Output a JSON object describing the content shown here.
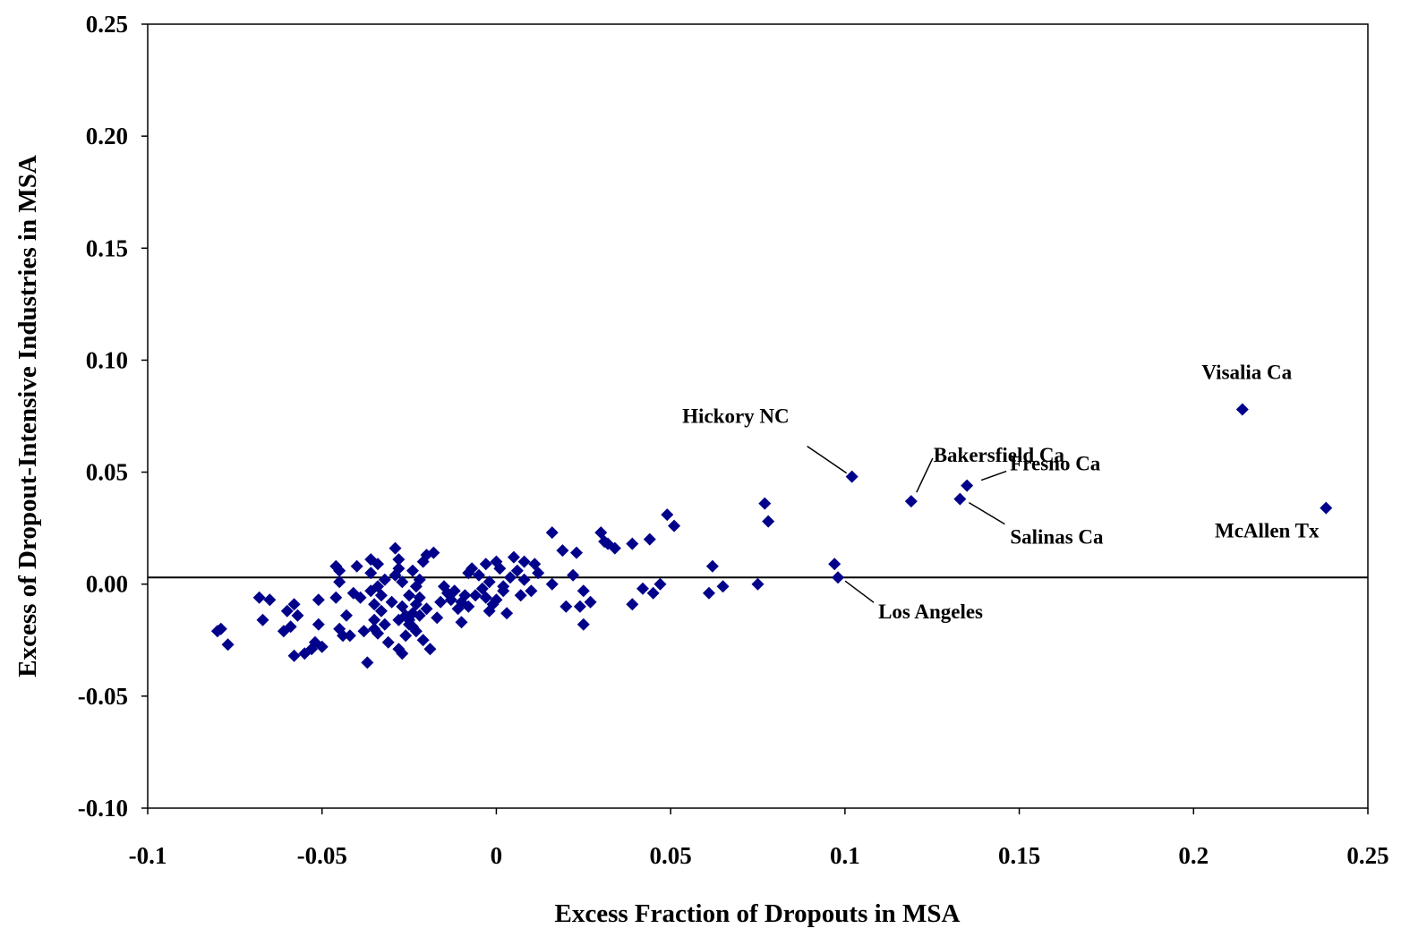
{
  "chart_data": {
    "type": "scatter",
    "title": "",
    "xlabel": "Excess Fraction of Dropouts in MSA",
    "ylabel": "Excess of Dropout-Intensive Industries in MSA",
    "xlim": [
      -0.1,
      0.25
    ],
    "ylim": [
      -0.1,
      0.25
    ],
    "x_ticks": [
      -0.1,
      -0.05,
      0,
      0.05,
      0.1,
      0.15,
      0.2,
      0.25
    ],
    "x_tick_labels": [
      "-0.1",
      "-0.05",
      "0",
      "0.05",
      "0.1",
      "0.15",
      "0.2",
      "0.25"
    ],
    "y_ticks": [
      -0.1,
      -0.05,
      0,
      0.05,
      0.1,
      0.15,
      0.2,
      0.25
    ],
    "y_tick_labels": [
      "-0.10",
      "-0.05",
      "0.00",
      "0.05",
      "0.10",
      "0.15",
      "0.20",
      "0.25"
    ],
    "grid": false,
    "legend": "none",
    "marker_color": "#00008B",
    "reference_line": {
      "y": 0.003,
      "color": "#000000"
    },
    "series": [
      {
        "x": [
          -0.08,
          -0.079,
          -0.077,
          -0.068,
          -0.067,
          -0.065,
          -0.061,
          -0.06,
          -0.059,
          -0.058,
          -0.058,
          -0.057,
          -0.055,
          -0.053,
          -0.052,
          -0.051,
          -0.051,
          -0.05,
          -0.046,
          -0.046,
          -0.045,
          -0.045,
          -0.045,
          -0.044,
          -0.043,
          -0.042,
          -0.041,
          -0.04,
          -0.039,
          -0.038,
          -0.037,
          -0.036,
          -0.036,
          -0.036,
          -0.035,
          -0.035,
          -0.035,
          -0.034,
          -0.034,
          -0.034,
          -0.033,
          -0.033,
          -0.032,
          -0.032,
          -0.031,
          -0.03,
          -0.029,
          -0.029,
          -0.028,
          -0.028,
          -0.028,
          -0.028,
          -0.027,
          -0.027,
          -0.027,
          -0.026,
          -0.026,
          -0.025,
          -0.025,
          -0.025,
          -0.024,
          -0.024,
          -0.024,
          -0.023,
          -0.023,
          -0.023,
          -0.022,
          -0.022,
          -0.022,
          -0.021,
          -0.021,
          -0.02,
          -0.02,
          -0.019,
          -0.018,
          -0.017,
          -0.016,
          -0.015,
          -0.014,
          -0.013,
          -0.012,
          -0.011,
          -0.01,
          -0.01,
          -0.009,
          -0.008,
          -0.008,
          -0.007,
          -0.006,
          -0.005,
          -0.004,
          -0.003,
          -0.003,
          -0.002,
          -0.002,
          -0.001,
          0.0,
          0.0,
          0.001,
          0.002,
          0.002,
          0.003,
          0.004,
          0.005,
          0.006,
          0.007,
          0.008,
          0.008,
          0.01,
          0.011,
          0.012,
          0.016,
          0.016,
          0.019,
          0.02,
          0.022,
          0.023,
          0.024,
          0.025,
          0.025,
          0.027,
          0.03,
          0.031,
          0.032,
          0.034,
          0.039,
          0.039,
          0.042,
          0.044,
          0.045,
          0.047,
          0.049,
          0.051,
          0.061,
          0.062,
          0.065,
          0.075,
          0.077,
          0.078,
          0.097,
          0.098,
          0.102,
          0.119,
          0.133,
          0.135,
          0.214,
          0.238
        ],
        "y": [
          -0.021,
          -0.02,
          -0.027,
          -0.006,
          -0.016,
          -0.007,
          -0.021,
          -0.012,
          -0.019,
          -0.009,
          -0.032,
          -0.014,
          -0.031,
          -0.029,
          -0.026,
          -0.018,
          -0.007,
          -0.028,
          -0.006,
          0.008,
          -0.02,
          0.001,
          0.006,
          -0.023,
          -0.014,
          -0.023,
          -0.004,
          0.008,
          -0.006,
          -0.021,
          -0.035,
          0.005,
          -0.003,
          0.011,
          -0.009,
          -0.016,
          -0.02,
          0.009,
          -0.001,
          -0.022,
          -0.005,
          -0.012,
          -0.018,
          0.002,
          -0.026,
          -0.008,
          0.016,
          0.004,
          -0.029,
          0.011,
          0.007,
          -0.016,
          -0.031,
          -0.01,
          0.001,
          -0.014,
          -0.023,
          -0.018,
          -0.005,
          -0.016,
          0.006,
          -0.013,
          -0.019,
          -0.009,
          -0.001,
          -0.021,
          -0.006,
          0.002,
          -0.014,
          0.01,
          -0.025,
          -0.011,
          0.013,
          -0.029,
          0.014,
          -0.015,
          -0.008,
          -0.001,
          -0.004,
          -0.007,
          -0.003,
          -0.011,
          -0.008,
          -0.017,
          -0.005,
          0.005,
          -0.01,
          0.007,
          -0.005,
          0.004,
          -0.002,
          0.009,
          -0.006,
          0.001,
          -0.012,
          -0.009,
          -0.007,
          0.01,
          0.007,
          -0.001,
          -0.003,
          -0.013,
          0.003,
          0.012,
          0.006,
          -0.005,
          0.01,
          0.002,
          -0.003,
          0.009,
          0.005,
          0.023,
          0.0,
          0.015,
          -0.01,
          0.004,
          0.014,
          -0.01,
          -0.003,
          -0.018,
          -0.008,
          0.023,
          0.019,
          0.018,
          0.016,
          0.018,
          -0.009,
          -0.002,
          0.02,
          -0.004,
          -0.0,
          0.031,
          0.026,
          -0.004,
          0.008,
          -0.001,
          -0.0,
          0.036,
          0.028,
          0.009,
          0.003,
          0.048,
          0.037,
          0.038,
          0.044,
          0.078,
          0.034
        ]
      }
    ],
    "annotations": [
      {
        "label": "Hickory NC",
        "x": 0.102,
        "y": 0.048
      },
      {
        "label": "Bakersfield Ca",
        "x": 0.119,
        "y": 0.037
      },
      {
        "label": "Fresno Ca",
        "x": 0.135,
        "y": 0.044
      },
      {
        "label": "Salinas Ca",
        "x": 0.133,
        "y": 0.038
      },
      {
        "label": "Visalia Ca",
        "x": 0.214,
        "y": 0.078
      },
      {
        "label": "McAllen Tx",
        "x": 0.238,
        "y": 0.034
      },
      {
        "label": "Los Angeles",
        "x": 0.098,
        "y": 0.003
      }
    ]
  }
}
